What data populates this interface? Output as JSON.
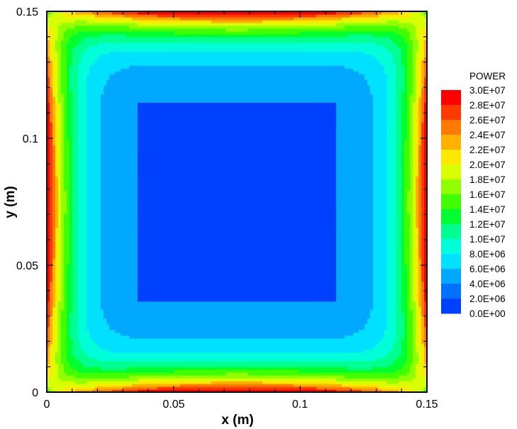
{
  "chart_data": {
    "type": "heatmap",
    "title": "",
    "xlabel": "x (m)",
    "ylabel": "y (m)",
    "xlim": [
      0,
      0.15
    ],
    "ylim": [
      0,
      0.15
    ],
    "x_ticks": [
      "0",
      "0.05",
      "0.1",
      "0.15"
    ],
    "y_ticks": [
      "0",
      "0.05",
      "0.1",
      "0.15"
    ],
    "x_tick_values": [
      0,
      0.05,
      0.1,
      0.15
    ],
    "y_tick_values": [
      0,
      0.05,
      0.1,
      0.15
    ],
    "grid": false,
    "legend": {
      "title": "POWER",
      "placement": "right",
      "levels": [
        "3.0E+07",
        "2.8E+07",
        "2.6E+07",
        "2.4E+07",
        "2.2E+07",
        "2.0E+07",
        "1.8E+07",
        "1.6E+07",
        "1.4E+07",
        "1.2E+07",
        "1.0E+07",
        "8.0E+06",
        "6.0E+06",
        "4.0E+06",
        "2.0E+06",
        "0.0E+00"
      ],
      "level_values": [
        30000000.0,
        28000000.0,
        26000000.0,
        24000000.0,
        22000000.0,
        20000000.0,
        18000000.0,
        16000000.0,
        14000000.0,
        12000000.0,
        10000000.0,
        8000000.0,
        6000000.0,
        4000000.0,
        2000000.0,
        0.0
      ],
      "colors": [
        "#ff0000",
        "#ff3a00",
        "#ff7a00",
        "#ffb000",
        "#ffe800",
        "#d8ff00",
        "#90ff00",
        "#40ff00",
        "#00ff30",
        "#00ff90",
        "#00ffd8",
        "#00e0ff",
        "#00a8ff",
        "#0070ff",
        "#0040ff",
        "#0000ff"
      ]
    },
    "field_description_min": 1500000.0,
    "field_description_max": 30000000.0
  }
}
